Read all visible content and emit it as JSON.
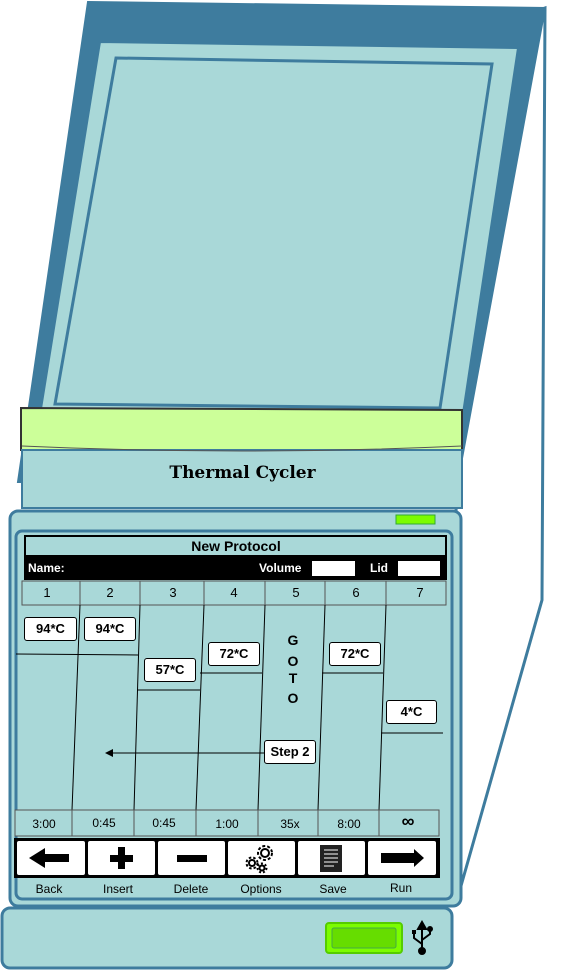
{
  "device": {
    "brand_label": "Thermal Cycler",
    "led_color": "#7CFC00",
    "usb_led_color": "#66DD00",
    "body_color": "#A9D8D8",
    "frame_color": "#3E7C9E",
    "strip_color": "#CCFF99"
  },
  "screen": {
    "title": "New Protocol",
    "name_label": "Name:",
    "volume_label": "Volume",
    "lid_label": "Lid"
  },
  "steps": {
    "columns": [
      "1",
      "2",
      "3",
      "4",
      "5",
      "6",
      "7"
    ],
    "temps": {
      "c1": "94*C",
      "c2": "94*C",
      "c3": "57*C",
      "c4": "72*C",
      "c6": "72*C",
      "c7": "4*C"
    },
    "goto_letters": [
      "G",
      "O",
      "T",
      "O"
    ],
    "goto_target": "Step 2",
    "times": [
      "3:00",
      "0:45",
      "0:45",
      "1:00",
      "35x",
      "8:00",
      "∞"
    ]
  },
  "toolbar": {
    "back": "Back",
    "insert": "Insert",
    "delete": "Delete",
    "options": "Options",
    "save": "Save",
    "run": "Run"
  },
  "icons": [
    "arrow-left-icon",
    "plus-icon",
    "minus-icon",
    "gears-icon",
    "document-icon",
    "arrow-right-icon",
    "usb-icon"
  ]
}
